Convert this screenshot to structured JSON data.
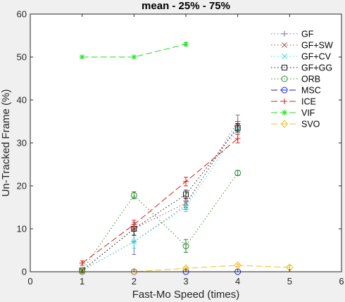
{
  "chart_data": {
    "type": "line",
    "title": "mean - 25% - 75%",
    "xlabel": "Fast-Mo Speed (times)",
    "ylabel": "Un-Tracked Frame (%)",
    "xlim": [
      0,
      6
    ],
    "ylim": [
      0,
      60
    ],
    "xticks": [
      "0",
      "1",
      "2",
      "3",
      "4",
      "5",
      "6"
    ],
    "yticks": [
      "0",
      "10",
      "20",
      "30",
      "40",
      "50",
      "60"
    ],
    "grid": false,
    "legend_position": "top-right",
    "series": [
      {
        "name": "GF",
        "color": "#7a6fa0",
        "marker": "plus",
        "dash": "1.5,3",
        "points": [
          [
            1,
            0.3,
            0,
            0.6
          ],
          [
            2,
            7,
            4,
            10
          ],
          [
            3,
            15.5,
            14.5,
            16.5
          ],
          [
            4,
            35,
            33,
            36.5
          ]
        ]
      },
      {
        "name": "GF+SW",
        "color": "#a0524f",
        "marker": "x",
        "dash": "1.5,3",
        "points": [
          [
            1,
            0.3,
            0,
            0.6
          ],
          [
            2,
            10,
            8.5,
            11.5
          ],
          [
            3,
            16,
            15,
            17
          ],
          [
            4,
            34,
            33,
            35
          ]
        ]
      },
      {
        "name": "GF+CV",
        "color": "#3fd6d6",
        "marker": "x",
        "dash": "1.5,3",
        "points": [
          [
            1,
            0.3,
            0,
            0.6
          ],
          [
            2,
            7,
            5.5,
            8.5
          ],
          [
            3,
            15,
            14,
            16
          ],
          [
            4,
            33,
            32,
            34
          ]
        ]
      },
      {
        "name": "GF+GG",
        "color": "#1a1a1a",
        "marker": "square",
        "dash": "1.5,3",
        "points": [
          [
            1,
            0.3,
            0,
            0.6
          ],
          [
            2,
            10,
            8.5,
            11
          ],
          [
            3,
            18,
            17,
            19
          ],
          [
            4,
            33.5,
            32.5,
            34.5
          ]
        ]
      },
      {
        "name": "ORB",
        "color": "#2e8b2e",
        "marker": "circle",
        "dash": "1.5,3",
        "points": [
          [
            1,
            0.3,
            0,
            0.6
          ],
          [
            2,
            17.8,
            17,
            18.6
          ],
          [
            3,
            6,
            4.5,
            7.5
          ],
          [
            4,
            23,
            22.4,
            23.6
          ]
        ]
      },
      {
        "name": "MSC",
        "color": "#1a1adb",
        "marker": "circle",
        "dash": "9,4",
        "points": [
          [
            1,
            0,
            0,
            0
          ],
          [
            2,
            0,
            0,
            0
          ],
          [
            3,
            0,
            0,
            0
          ],
          [
            4,
            0,
            0,
            0
          ]
        ]
      },
      {
        "name": "ICE",
        "color": "#d62020",
        "marker": "plus",
        "dash": "9,4",
        "points": [
          [
            1,
            2,
            1.5,
            2.5
          ],
          [
            2,
            11,
            10,
            12
          ],
          [
            3,
            21,
            20,
            22
          ],
          [
            4,
            31,
            30,
            32
          ]
        ]
      },
      {
        "name": "VIF",
        "color": "#22dd22",
        "marker": "asterisk",
        "dash": "9,4",
        "points": [
          [
            1,
            50,
            50,
            50
          ],
          [
            2,
            50,
            50,
            50
          ],
          [
            3,
            53,
            52.6,
            53.4
          ]
        ]
      },
      {
        "name": "SVO",
        "color": "#f0c020",
        "marker": "diamond",
        "dash": "9,4",
        "points": [
          [
            1,
            0,
            0,
            0
          ],
          [
            2,
            0,
            0,
            0
          ],
          [
            3,
            0.8,
            0.5,
            1.1
          ],
          [
            4,
            1.5,
            1.2,
            1.8
          ],
          [
            5,
            1,
            0.6,
            1.4
          ]
        ]
      }
    ]
  }
}
